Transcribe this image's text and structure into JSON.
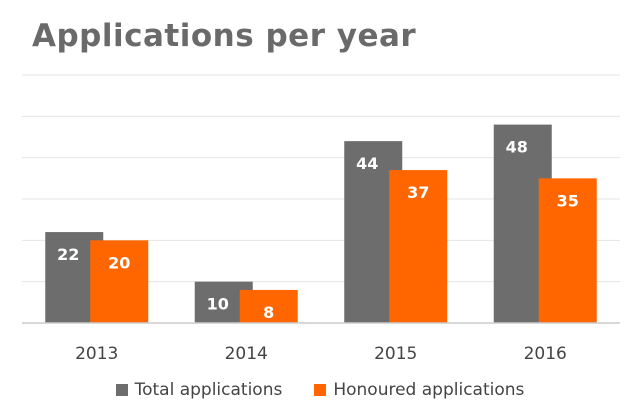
{
  "chart_data": {
    "type": "bar",
    "title": "Applications per year",
    "categories": [
      "2013",
      "2014",
      "2015",
      "2016"
    ],
    "series": [
      {
        "name": "Total applications",
        "values": [
          22,
          10,
          44,
          48
        ],
        "color": "#6d6d6d"
      },
      {
        "name": "Honoured applications",
        "values": [
          20,
          8,
          37,
          35
        ],
        "color": "#ff6600"
      }
    ],
    "ylim": [
      0,
      60
    ],
    "grid": true,
    "data_labels": true,
    "legend_position": "bottom"
  }
}
